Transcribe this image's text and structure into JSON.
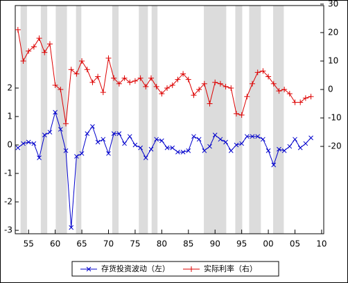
{
  "chart_data": {
    "type": "line",
    "x": [
      1953,
      1954,
      1955,
      1956,
      1957,
      1958,
      1959,
      1960,
      1961,
      1962,
      1963,
      1964,
      1965,
      1966,
      1967,
      1968,
      1969,
      1970,
      1971,
      1972,
      1973,
      1974,
      1975,
      1976,
      1977,
      1978,
      1979,
      1980,
      1981,
      1982,
      1983,
      1984,
      1985,
      1986,
      1987,
      1988,
      1989,
      1990,
      1991,
      1992,
      1993,
      1994,
      1995,
      1996,
      1997,
      1998,
      1999,
      2000,
      2001,
      2002,
      2003,
      2004,
      2005,
      2006,
      2007,
      2008
    ],
    "xlim": [
      1952.5,
      2010.4
    ],
    "xticks": [
      {
        "value": 1955,
        "label": "55"
      },
      {
        "value": 1960,
        "label": "60"
      },
      {
        "value": 1965,
        "label": "65"
      },
      {
        "value": 1970,
        "label": "70"
      },
      {
        "value": 1975,
        "label": "75"
      },
      {
        "value": 1980,
        "label": "80"
      },
      {
        "value": 1985,
        "label": "85"
      },
      {
        "value": 1990,
        "label": "90"
      },
      {
        "value": 1995,
        "label": "95"
      },
      {
        "value": 2000,
        "label": "00"
      },
      {
        "value": 2005,
        "label": "05"
      },
      {
        "value": 2010,
        "label": "10"
      }
    ],
    "ylim": [
      -3.12,
      4.9
    ],
    "yticks": [
      -3,
      -2,
      -1,
      0,
      1,
      2
    ],
    "y2lim": [
      -50.7,
      29.5
    ],
    "y2ticks": [
      -20,
      -10,
      0,
      10,
      20,
      30
    ],
    "shaded_periods": [
      [
        1953.5,
        1954.7
      ],
      [
        1957.3,
        1958.5
      ],
      [
        1960.1,
        1962.2
      ],
      [
        1963.9,
        1964.9
      ],
      [
        1970.7,
        1971.9
      ],
      [
        1975.7,
        1977.4
      ],
      [
        1978.1,
        1979.2
      ],
      [
        1987.9,
        1992.1
      ],
      [
        1993.8,
        1995.1
      ],
      [
        1996.4,
        1998.6
      ],
      [
        2000.9,
        2002.9
      ]
    ],
    "shade_color": "#dcdcdc",
    "series": [
      {
        "name": "存货投资波动（左）",
        "color": "#0000cc",
        "marker": "x",
        "axis": "y",
        "values": [
          -0.1,
          0.05,
          0.1,
          0.05,
          -0.45,
          0.35,
          0.45,
          1.15,
          0.55,
          -0.2,
          -2.9,
          -0.4,
          -0.3,
          0.4,
          0.65,
          0.1,
          0.2,
          -0.3,
          0.4,
          0.4,
          0.05,
          0.3,
          0.0,
          -0.1,
          -0.45,
          -0.15,
          0.2,
          0.15,
          -0.1,
          -0.1,
          -0.25,
          -0.25,
          -0.2,
          0.3,
          0.2,
          -0.2,
          -0.05,
          0.35,
          0.2,
          0.1,
          -0.2,
          0.0,
          0.05,
          0.3,
          0.3,
          0.3,
          0.2,
          -0.2,
          -0.7,
          -0.15,
          -0.2,
          -0.05,
          0.2,
          -0.1,
          0.05,
          0.25
        ]
      },
      {
        "name": "实际利率（右）",
        "color": "#dd0000",
        "marker": "+",
        "axis": "y2",
        "values": [
          21,
          10,
          13.5,
          15,
          18,
          13,
          16,
          1.5,
          0,
          -12,
          7,
          5.5,
          10,
          7,
          2.5,
          4.5,
          -1,
          11,
          4,
          2,
          4,
          2.5,
          3,
          4,
          1,
          4,
          1,
          -1.5,
          0.5,
          1.5,
          3.5,
          5.5,
          3.5,
          -2,
          0,
          2,
          -5,
          2.5,
          2,
          1,
          0.5,
          -8.5,
          -9,
          -2.5,
          2,
          6,
          6.5,
          4.5,
          2,
          -0.5,
          0,
          -1.5,
          -4.5,
          -4.5,
          -3,
          -2.5
        ]
      }
    ]
  }
}
